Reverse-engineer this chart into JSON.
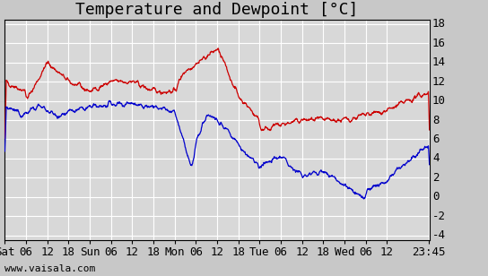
{
  "title": "Temperature and Dewpoint [°C]",
  "ylabel_right_ticks": [
    -4,
    -2,
    0,
    2,
    4,
    6,
    8,
    10,
    12,
    14,
    16,
    18
  ],
  "ylim": [
    -4.5,
    18.5
  ],
  "x_tick_labels": [
    "Sat",
    "06",
    "12",
    "18",
    "Sun",
    "06",
    "12",
    "18",
    "Mon",
    "06",
    "12",
    "18",
    "Tue",
    "06",
    "12",
    "18",
    "Wed",
    "06",
    "12",
    "23:45"
  ],
  "watermark": "www.vaisala.com",
  "bg_color": "#c8c8c8",
  "plot_bg_color": "#d8d8d8",
  "grid_color": "#ffffff",
  "temp_color": "#cc0000",
  "dew_color": "#0000cc",
  "title_fontsize": 13,
  "tick_fontsize": 9,
  "watermark_fontsize": 8
}
